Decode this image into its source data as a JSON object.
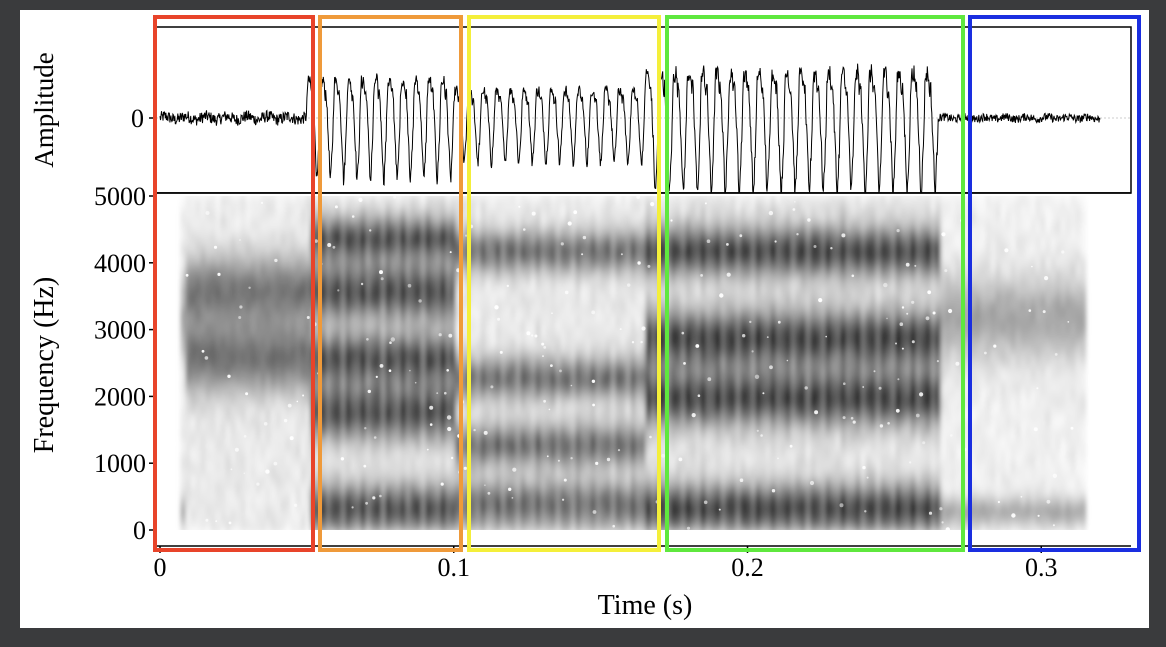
{
  "colors": {
    "frame": "#3a3b3d",
    "panel": "#ffffff",
    "ink": "#000000",
    "segment_red": "#e8442a",
    "segment_orange": "#ef9a3a",
    "segment_yellow": "#f4ef3a",
    "segment_green": "#5fe83e",
    "segment_blue": "#1a2ee0"
  },
  "chart_data": [
    {
      "type": "line",
      "title": "",
      "xlabel": "",
      "ylabel": "Amplitude",
      "ytick_labels": [
        "0"
      ],
      "xlim": [
        0,
        0.32
      ],
      "grid": false,
      "description_of_series": "waveform",
      "segments_s": [
        {
          "start": 0.0,
          "end": 0.05,
          "level": 0.12
        },
        {
          "start": 0.05,
          "end": 0.1,
          "level": 0.75
        },
        {
          "start": 0.1,
          "end": 0.165,
          "level": 0.55
        },
        {
          "start": 0.165,
          "end": 0.265,
          "level": 0.9
        },
        {
          "start": 0.265,
          "end": 0.32,
          "level": 0.08
        }
      ],
      "periods_s": [
        {
          "start": 0.05,
          "end": 0.1,
          "count": 11
        },
        {
          "start": 0.1,
          "end": 0.165,
          "count": 14
        },
        {
          "start": 0.165,
          "end": 0.265,
          "count": 21
        }
      ]
    },
    {
      "type": "heatmap",
      "title": "",
      "xlabel": "Time (s)",
      "ylabel": "Frequency (Hz)",
      "xlim": [
        0,
        0.32
      ],
      "ylim": [
        0,
        5000
      ],
      "xtick_labels": [
        "0",
        "0.1",
        "0.2",
        "0.3"
      ],
      "xticks": [
        0,
        0.1,
        0.2,
        0.3
      ],
      "ytick_labels": [
        "0",
        "1000",
        "2000",
        "3000",
        "4000",
        "5000"
      ],
      "yticks": [
        0,
        1000,
        2000,
        3000,
        4000,
        5000
      ],
      "data_extent_s": [
        0.007,
        0.314
      ],
      "colormap": "grayscale, dark = high energy",
      "formant_bands_hz": [
        {
          "start": 0.007,
          "end": 0.05,
          "bands": [
            [
              2600,
              500
            ],
            [
              3600,
              500
            ]
          ],
          "intensity": 0.55
        },
        {
          "start": 0.05,
          "end": 0.1,
          "bands": [
            [
              350,
              350
            ],
            [
              1800,
              400
            ],
            [
              2600,
              350
            ],
            [
              3600,
              400
            ],
            [
              4400,
              300
            ]
          ],
          "intensity": 0.85
        },
        {
          "start": 0.1,
          "end": 0.165,
          "bands": [
            [
              400,
              350
            ],
            [
              1300,
              300
            ],
            [
              2300,
              300
            ],
            [
              4200,
              300
            ]
          ],
          "intensity": 0.7
        },
        {
          "start": 0.165,
          "end": 0.265,
          "bands": [
            [
              350,
              350
            ],
            [
              2000,
              400
            ],
            [
              2900,
              400
            ],
            [
              4200,
              350
            ]
          ],
          "intensity": 0.9
        },
        {
          "start": 0.265,
          "end": 0.314,
          "bands": [
            [
              300,
              200
            ],
            [
              3200,
              600
            ]
          ],
          "intensity": 0.35
        }
      ]
    }
  ]
}
